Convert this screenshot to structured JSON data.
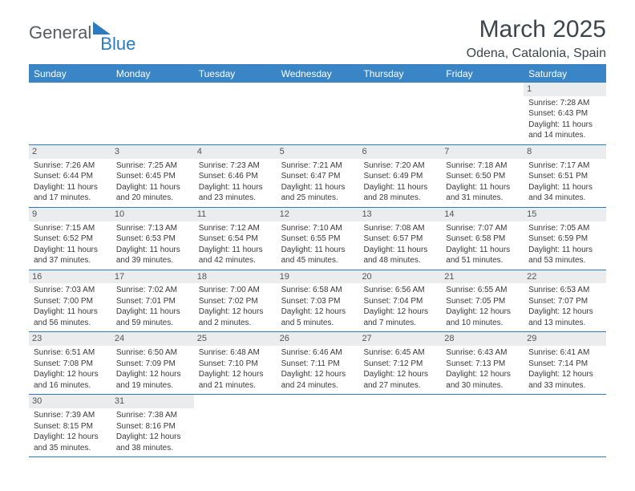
{
  "logo": {
    "general": "General",
    "blue": "Blue"
  },
  "header": {
    "month": "March 2025",
    "location": "Odena, Catalonia, Spain"
  },
  "colors": {
    "header_bg": "#3a85c6",
    "border": "#2c7abf",
    "daynum_bg": "#ebecee",
    "text": "#3a3a3a",
    "logo_gray": "#575c5f",
    "logo_blue": "#2c7abf"
  },
  "days_of_week": [
    "Sunday",
    "Monday",
    "Tuesday",
    "Wednesday",
    "Thursday",
    "Friday",
    "Saturday"
  ],
  "weeks": [
    [
      null,
      null,
      null,
      null,
      null,
      null,
      {
        "d": "1",
        "rise": "7:28 AM",
        "set": "6:43 PM",
        "dl": "11 hours and 14 minutes."
      }
    ],
    [
      {
        "d": "2",
        "rise": "7:26 AM",
        "set": "6:44 PM",
        "dl": "11 hours and 17 minutes."
      },
      {
        "d": "3",
        "rise": "7:25 AM",
        "set": "6:45 PM",
        "dl": "11 hours and 20 minutes."
      },
      {
        "d": "4",
        "rise": "7:23 AM",
        "set": "6:46 PM",
        "dl": "11 hours and 23 minutes."
      },
      {
        "d": "5",
        "rise": "7:21 AM",
        "set": "6:47 PM",
        "dl": "11 hours and 25 minutes."
      },
      {
        "d": "6",
        "rise": "7:20 AM",
        "set": "6:49 PM",
        "dl": "11 hours and 28 minutes."
      },
      {
        "d": "7",
        "rise": "7:18 AM",
        "set": "6:50 PM",
        "dl": "11 hours and 31 minutes."
      },
      {
        "d": "8",
        "rise": "7:17 AM",
        "set": "6:51 PM",
        "dl": "11 hours and 34 minutes."
      }
    ],
    [
      {
        "d": "9",
        "rise": "7:15 AM",
        "set": "6:52 PM",
        "dl": "11 hours and 37 minutes."
      },
      {
        "d": "10",
        "rise": "7:13 AM",
        "set": "6:53 PM",
        "dl": "11 hours and 39 minutes."
      },
      {
        "d": "11",
        "rise": "7:12 AM",
        "set": "6:54 PM",
        "dl": "11 hours and 42 minutes."
      },
      {
        "d": "12",
        "rise": "7:10 AM",
        "set": "6:55 PM",
        "dl": "11 hours and 45 minutes."
      },
      {
        "d": "13",
        "rise": "7:08 AM",
        "set": "6:57 PM",
        "dl": "11 hours and 48 minutes."
      },
      {
        "d": "14",
        "rise": "7:07 AM",
        "set": "6:58 PM",
        "dl": "11 hours and 51 minutes."
      },
      {
        "d": "15",
        "rise": "7:05 AM",
        "set": "6:59 PM",
        "dl": "11 hours and 53 minutes."
      }
    ],
    [
      {
        "d": "16",
        "rise": "7:03 AM",
        "set": "7:00 PM",
        "dl": "11 hours and 56 minutes."
      },
      {
        "d": "17",
        "rise": "7:02 AM",
        "set": "7:01 PM",
        "dl": "11 hours and 59 minutes."
      },
      {
        "d": "18",
        "rise": "7:00 AM",
        "set": "7:02 PM",
        "dl": "12 hours and 2 minutes."
      },
      {
        "d": "19",
        "rise": "6:58 AM",
        "set": "7:03 PM",
        "dl": "12 hours and 5 minutes."
      },
      {
        "d": "20",
        "rise": "6:56 AM",
        "set": "7:04 PM",
        "dl": "12 hours and 7 minutes."
      },
      {
        "d": "21",
        "rise": "6:55 AM",
        "set": "7:05 PM",
        "dl": "12 hours and 10 minutes."
      },
      {
        "d": "22",
        "rise": "6:53 AM",
        "set": "7:07 PM",
        "dl": "12 hours and 13 minutes."
      }
    ],
    [
      {
        "d": "23",
        "rise": "6:51 AM",
        "set": "7:08 PM",
        "dl": "12 hours and 16 minutes."
      },
      {
        "d": "24",
        "rise": "6:50 AM",
        "set": "7:09 PM",
        "dl": "12 hours and 19 minutes."
      },
      {
        "d": "25",
        "rise": "6:48 AM",
        "set": "7:10 PM",
        "dl": "12 hours and 21 minutes."
      },
      {
        "d": "26",
        "rise": "6:46 AM",
        "set": "7:11 PM",
        "dl": "12 hours and 24 minutes."
      },
      {
        "d": "27",
        "rise": "6:45 AM",
        "set": "7:12 PM",
        "dl": "12 hours and 27 minutes."
      },
      {
        "d": "28",
        "rise": "6:43 AM",
        "set": "7:13 PM",
        "dl": "12 hours and 30 minutes."
      },
      {
        "d": "29",
        "rise": "6:41 AM",
        "set": "7:14 PM",
        "dl": "12 hours and 33 minutes."
      }
    ],
    [
      {
        "d": "30",
        "rise": "7:39 AM",
        "set": "8:15 PM",
        "dl": "12 hours and 35 minutes."
      },
      {
        "d": "31",
        "rise": "7:38 AM",
        "set": "8:16 PM",
        "dl": "12 hours and 38 minutes."
      },
      null,
      null,
      null,
      null,
      null
    ]
  ],
  "labels": {
    "sunrise": "Sunrise: ",
    "sunset": "Sunset: ",
    "daylight": "Daylight: "
  }
}
